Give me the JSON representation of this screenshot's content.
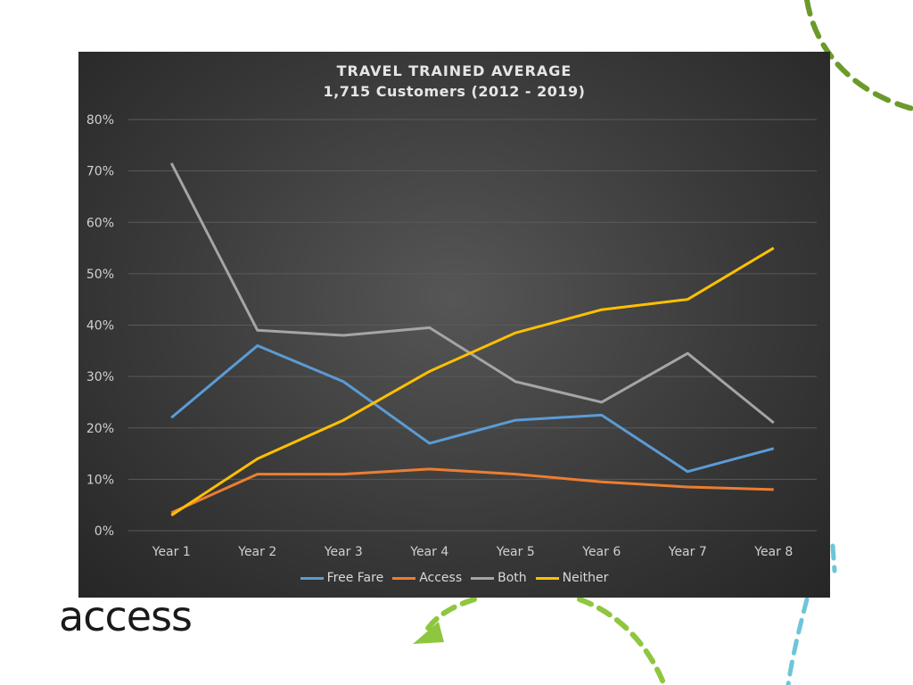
{
  "logo_text": "access",
  "colors": {
    "green": "#6b9a2a",
    "lime": "#8fc63f",
    "cyan": "#6cc6d8",
    "grid": "#5a5a5a",
    "axis_text": "#d0d0d0"
  },
  "chart_data": {
    "type": "line",
    "title": "TRAVEL TRAINED AVERAGE",
    "subtitle": "1,715 Customers (2012 - 2019)",
    "categories": [
      "Year 1",
      "Year 2",
      "Year 3",
      "Year 4",
      "Year 5",
      "Year 6",
      "Year 7",
      "Year 8"
    ],
    "y_ticks": [
      "0%",
      "10%",
      "20%",
      "30%",
      "40%",
      "50%",
      "60%",
      "70%",
      "80%"
    ],
    "ylim": [
      0,
      80
    ],
    "grid": true,
    "legend_position": "bottom",
    "series": [
      {
        "name": "Free Fare",
        "color": "#5b9bd5",
        "values": [
          22,
          36,
          29,
          17,
          21.5,
          22.5,
          11.5,
          16
        ]
      },
      {
        "name": "Access",
        "color": "#ed7d31",
        "values": [
          3.5,
          11,
          11,
          12,
          11,
          9.5,
          8.5,
          8
        ]
      },
      {
        "name": "Both",
        "color": "#a5a5a5",
        "values": [
          71.5,
          39,
          38,
          39.5,
          29,
          25,
          34.5,
          21
        ]
      },
      {
        "name": "Neither",
        "color": "#ffc000",
        "values": [
          3,
          14,
          21.5,
          31,
          38.5,
          43,
          45,
          55
        ]
      }
    ]
  }
}
